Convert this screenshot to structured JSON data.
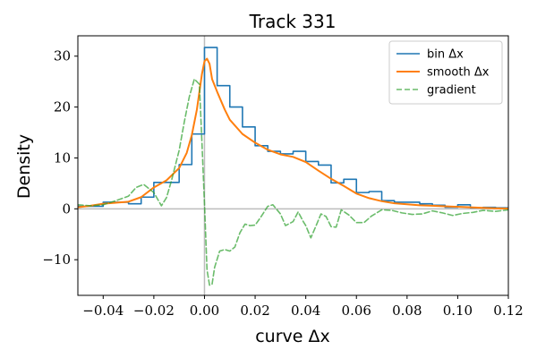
{
  "chart_data": {
    "type": "line",
    "title": "Track 331",
    "xlabel": "curve Δx",
    "ylabel": "Density",
    "xlim": [
      -0.05,
      0.12
    ],
    "ylim": [
      -17,
      34
    ],
    "xticks": [
      -0.04,
      -0.02,
      0.0,
      0.02,
      0.04,
      0.06,
      0.08,
      0.1,
      0.12
    ],
    "xtick_labels": [
      "−0.04",
      "−0.02",
      "0.00",
      "0.02",
      "0.04",
      "0.06",
      "0.08",
      "0.10",
      "0.12"
    ],
    "yticks": [
      -10,
      0,
      10,
      20,
      30
    ],
    "ytick_labels": [
      "−10",
      "0",
      "10",
      "20",
      "30"
    ],
    "grid": false,
    "reference_lines": {
      "horizontal_y": 0,
      "vertical_x": 0
    },
    "legend": {
      "position": "top-right"
    },
    "series": [
      {
        "name": "bin Δx",
        "style": "step",
        "color": "#1f77b4",
        "bin_edges": [
          -0.05,
          -0.045,
          -0.04,
          -0.035,
          -0.03,
          -0.025,
          -0.02,
          -0.015,
          -0.01,
          -0.005,
          0.0,
          0.005,
          0.01,
          0.015,
          0.02,
          0.025,
          0.03,
          0.035,
          0.04,
          0.045,
          0.05,
          0.055,
          0.06,
          0.065,
          0.07,
          0.075,
          0.08,
          0.085,
          0.09,
          0.095,
          0.1,
          0.105,
          0.11,
          0.115,
          0.12
        ],
        "values": [
          0.5,
          0.5,
          1.3,
          1.3,
          1.0,
          2.3,
          5.2,
          5.2,
          8.7,
          14.7,
          31.7,
          24.2,
          20.0,
          16.1,
          12.4,
          11.3,
          10.8,
          11.3,
          9.3,
          8.6,
          5.1,
          5.8,
          3.2,
          3.4,
          1.6,
          1.3,
          1.3,
          1.0,
          0.7,
          0.3,
          0.8,
          0.2,
          0.3,
          0.2
        ]
      },
      {
        "name": "smooth Δx",
        "style": "solid",
        "color": "#ff7f0e",
        "x": [
          -0.05,
          -0.045,
          -0.04,
          -0.035,
          -0.03,
          -0.025,
          -0.02,
          -0.015,
          -0.01,
          -0.007,
          -0.005,
          -0.003,
          -0.002,
          -0.001,
          0.0,
          0.001,
          0.002,
          0.003,
          0.005,
          0.008,
          0.01,
          0.015,
          0.02,
          0.025,
          0.03,
          0.035,
          0.04,
          0.045,
          0.05,
          0.055,
          0.06,
          0.065,
          0.07,
          0.075,
          0.08,
          0.085,
          0.09,
          0.095,
          0.1,
          0.105,
          0.11,
          0.115,
          0.12
        ],
        "y": [
          0.3,
          0.6,
          1.0,
          1.2,
          1.4,
          2.3,
          4.2,
          5.6,
          8.0,
          11.0,
          14.5,
          19.5,
          23.0,
          26.5,
          29.0,
          29.5,
          28.5,
          25.5,
          23.0,
          19.5,
          17.5,
          14.7,
          13.0,
          11.6,
          10.7,
          10.2,
          9.2,
          7.5,
          5.9,
          4.5,
          3.0,
          2.1,
          1.5,
          1.1,
          0.9,
          0.7,
          0.6,
          0.5,
          0.4,
          0.3,
          0.2,
          0.1,
          0.05
        ]
      },
      {
        "name": "gradient",
        "style": "dashed",
        "color": "#2ca02c",
        "x": [
          -0.05,
          -0.045,
          -0.04,
          -0.035,
          -0.03,
          -0.027,
          -0.024,
          -0.02,
          -0.017,
          -0.015,
          -0.013,
          -0.01,
          -0.008,
          -0.006,
          -0.004,
          -0.002,
          -0.001,
          0.0,
          0.001,
          0.002,
          0.003,
          0.004,
          0.006,
          0.008,
          0.01,
          0.012,
          0.014,
          0.016,
          0.018,
          0.02,
          0.022,
          0.025,
          0.027,
          0.03,
          0.032,
          0.035,
          0.037,
          0.039,
          0.04,
          0.042,
          0.044,
          0.046,
          0.048,
          0.05,
          0.052,
          0.054,
          0.057,
          0.06,
          0.063,
          0.066,
          0.07,
          0.074,
          0.078,
          0.082,
          0.086,
          0.09,
          0.094,
          0.098,
          0.102,
          0.106,
          0.11,
          0.115,
          0.12
        ],
        "y": [
          0.8,
          0.6,
          0.8,
          1.6,
          2.5,
          4.2,
          4.8,
          3.2,
          0.6,
          2.2,
          5.6,
          11.5,
          17.0,
          22.0,
          25.5,
          24.5,
          13.0,
          1.0,
          -12.0,
          -15.0,
          -14.8,
          -11.5,
          -8.3,
          -8.0,
          -8.3,
          -7.5,
          -4.7,
          -3.0,
          -3.3,
          -3.2,
          -1.8,
          0.5,
          0.8,
          -1.0,
          -3.3,
          -2.5,
          -0.6,
          -2.5,
          -3.3,
          -5.7,
          -3.4,
          -1.0,
          -1.5,
          -3.5,
          -3.6,
          -0.2,
          -1.2,
          -2.7,
          -2.7,
          -1.4,
          -0.2,
          -0.3,
          -0.8,
          -1.1,
          -1.0,
          -0.4,
          -0.8,
          -1.3,
          -0.9,
          -0.7,
          -0.3,
          -0.5,
          -0.2
        ]
      }
    ]
  }
}
